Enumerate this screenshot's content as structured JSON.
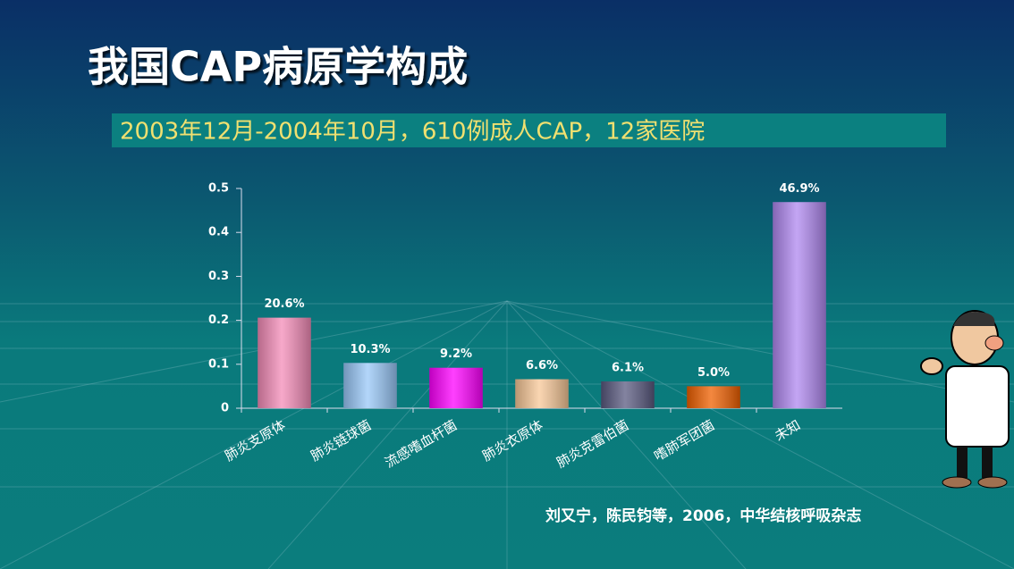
{
  "chart_data": {
    "type": "bar",
    "title": "我国CAP病原学构成",
    "subtitle": "2003年12月-2004年10月，610例成人CAP，12家医院",
    "source": "刘又宁，陈民钧等，2006，中华结核呼吸杂志",
    "categories": [
      "肺炎支原体",
      "肺炎链球菌",
      "流感嗜血杆菌",
      "肺炎衣原体",
      "肺炎克雷伯菌",
      "嗜肺军团菌",
      "未知"
    ],
    "values": [
      0.206,
      0.103,
      0.092,
      0.066,
      0.061,
      0.05,
      0.469
    ],
    "value_labels": [
      "20.6%",
      "10.3%",
      "9.2%",
      "6.6%",
      "6.1%",
      "5.0%",
      "46.9%"
    ],
    "colors": [
      "#f48cb8",
      "#99c8f8",
      "#ff00ff",
      "#f8c898",
      "#5a5a80",
      "#f06000",
      "#b088f0"
    ],
    "ylim": [
      0,
      0.5
    ],
    "yticks": [
      0,
      0.1,
      0.2,
      0.3,
      0.4,
      0.5
    ]
  }
}
